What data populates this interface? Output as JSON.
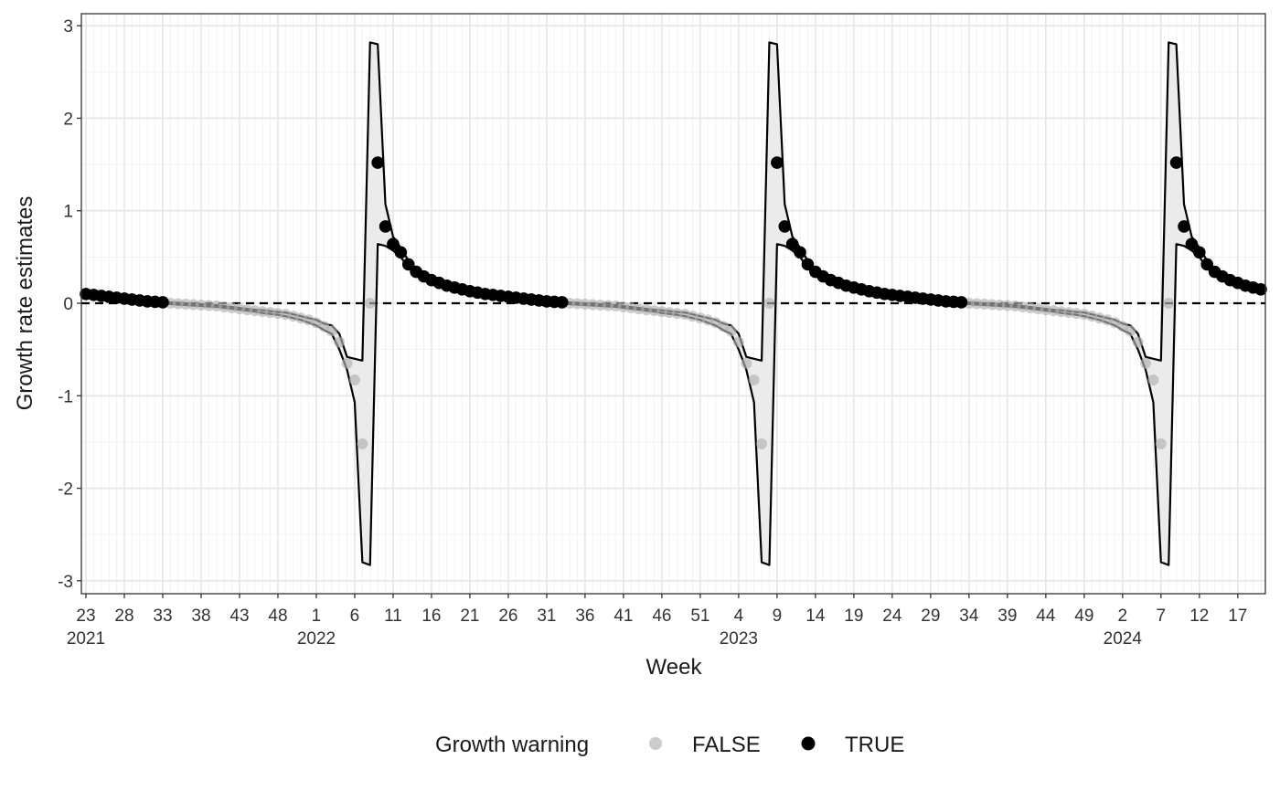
{
  "chart_data": {
    "type": "ribbon-points",
    "ylabel": "Growth rate estimates",
    "xlabel": "Week",
    "ylim": [
      -3.14,
      3.13
    ],
    "yticks": [
      -3,
      -2,
      -1,
      0,
      1,
      2,
      3
    ],
    "y_minor_grid": [
      -2.5,
      -1.5,
      -0.5,
      0.5,
      1.5,
      2.5
    ],
    "grid": true,
    "reference_line": 0,
    "legend": {
      "title": "Growth warning",
      "position": "bottom"
    },
    "categories": [
      "23\n2021",
      null,
      null,
      null,
      null,
      "28",
      null,
      null,
      null,
      null,
      "33",
      null,
      null,
      null,
      null,
      "38",
      null,
      null,
      null,
      null,
      "43",
      null,
      null,
      null,
      null,
      "48",
      null,
      null,
      null,
      null,
      "1\n2022",
      null,
      null,
      null,
      null,
      "6",
      null,
      null,
      null,
      null,
      "11",
      null,
      null,
      null,
      null,
      "16",
      null,
      null,
      null,
      null,
      "21",
      null,
      null,
      null,
      null,
      "26",
      null,
      null,
      null,
      null,
      "31",
      null,
      null,
      null,
      null,
      "36",
      null,
      null,
      null,
      null,
      "41",
      null,
      null,
      null,
      null,
      "46",
      null,
      null,
      null,
      null,
      "51",
      null,
      null,
      null,
      null,
      "4\n2023",
      null,
      null,
      null,
      null,
      "9",
      null,
      null,
      null,
      null,
      "14",
      null,
      null,
      null,
      null,
      "19",
      null,
      null,
      null,
      null,
      "24",
      null,
      null,
      null,
      null,
      "29",
      null,
      null,
      null,
      null,
      "34",
      null,
      null,
      null,
      null,
      "39",
      null,
      null,
      null,
      null,
      "44",
      null,
      null,
      null,
      null,
      "49",
      null,
      null,
      null,
      null,
      "2\n2024",
      null,
      null,
      null,
      null,
      "7",
      null,
      null,
      null,
      null,
      "12",
      null,
      null,
      null,
      null,
      "17",
      null,
      null,
      null
    ],
    "series": [
      {
        "name": "FALSE",
        "color": "#b0b0b0",
        "values": [
          null,
          null,
          null,
          null,
          null,
          null,
          null,
          null,
          null,
          null,
          null,
          0,
          -0.005,
          -0.01,
          -0.015,
          -0.02,
          -0.025,
          -0.03,
          -0.04,
          -0.05,
          -0.06,
          -0.07,
          -0.08,
          -0.09,
          -0.1,
          -0.11,
          -0.12,
          -0.14,
          -0.16,
          -0.18,
          -0.21,
          -0.25,
          -0.3,
          -0.42,
          -0.65,
          -0.83,
          -1.52,
          0,
          null,
          null,
          null,
          null,
          null,
          null,
          null,
          null,
          null,
          null,
          null,
          null,
          null,
          null,
          null,
          null,
          null,
          null,
          null,
          null,
          null,
          null,
          null,
          null,
          null,
          0,
          -0.005,
          -0.01,
          -0.015,
          -0.02,
          -0.025,
          -0.03,
          -0.04,
          -0.05,
          -0.06,
          -0.07,
          -0.08,
          -0.09,
          -0.1,
          -0.11,
          -0.12,
          -0.14,
          -0.16,
          -0.18,
          -0.21,
          -0.25,
          -0.3,
          -0.42,
          -0.65,
          -0.83,
          -1.52,
          0,
          null,
          null,
          null,
          null,
          null,
          null,
          null,
          null,
          null,
          null,
          null,
          null,
          null,
          null,
          null,
          null,
          null,
          null,
          null,
          null,
          null,
          null,
          null,
          null,
          null,
          0,
          -0.005,
          -0.01,
          -0.015,
          -0.02,
          -0.025,
          -0.03,
          -0.04,
          -0.05,
          -0.06,
          -0.07,
          -0.08,
          -0.09,
          -0.1,
          -0.11,
          -0.12,
          -0.14,
          -0.16,
          -0.18,
          -0.21,
          -0.25,
          -0.3,
          -0.42,
          -0.65,
          -0.83,
          -1.52,
          0,
          null,
          null,
          null,
          null,
          null,
          null,
          null,
          null,
          null,
          null,
          null,
          null
        ]
      },
      {
        "name": "TRUE",
        "color": "#000000",
        "values": [
          0.1,
          0.09,
          0.08,
          0.07,
          0.06,
          0.05,
          0.04,
          0.03,
          0.02,
          0.015,
          0.01,
          null,
          null,
          null,
          null,
          null,
          null,
          null,
          null,
          null,
          null,
          null,
          null,
          null,
          null,
          null,
          null,
          null,
          null,
          null,
          null,
          null,
          null,
          null,
          null,
          null,
          null,
          null,
          1.52,
          0.83,
          0.64,
          0.55,
          0.42,
          0.34,
          0.29,
          0.25,
          0.22,
          0.19,
          0.17,
          0.15,
          0.13,
          0.115,
          0.1,
          0.09,
          0.08,
          0.07,
          0.06,
          0.05,
          0.04,
          0.03,
          0.02,
          0.015,
          0.01,
          null,
          null,
          null,
          null,
          null,
          null,
          null,
          null,
          null,
          null,
          null,
          null,
          null,
          null,
          null,
          null,
          null,
          null,
          null,
          null,
          null,
          null,
          null,
          null,
          null,
          null,
          null,
          1.52,
          0.83,
          0.64,
          0.55,
          0.42,
          0.34,
          0.29,
          0.25,
          0.22,
          0.19,
          0.17,
          0.15,
          0.13,
          0.115,
          0.1,
          0.09,
          0.08,
          0.07,
          0.06,
          0.05,
          0.04,
          0.03,
          0.02,
          0.015,
          0.01,
          null,
          null,
          null,
          null,
          null,
          null,
          null,
          null,
          null,
          null,
          null,
          null,
          null,
          null,
          null,
          null,
          null,
          null,
          null,
          null,
          null,
          null,
          null,
          null,
          null,
          null,
          null,
          1.52,
          0.83,
          0.64,
          0.55,
          0.42,
          0.34,
          0.29,
          0.25,
          0.22,
          0.19,
          0.17,
          0.15
        ]
      }
    ],
    "ribbon": {
      "fill": "#ebebeb",
      "line_color": "#000000",
      "lower": [
        0.09,
        0.08,
        0.07,
        0.06,
        0.05,
        0.04,
        0.03,
        0.02,
        0.01,
        0.005,
        0,
        -0.01,
        -0.015,
        -0.02,
        -0.025,
        -0.03,
        -0.035,
        -0.04,
        -0.05,
        -0.06,
        -0.07,
        -0.08,
        -0.09,
        -0.105,
        -0.115,
        -0.125,
        -0.14,
        -0.16,
        -0.18,
        -0.21,
        -0.24,
        -0.29,
        -0.33,
        -0.5,
        -0.72,
        -1.07,
        -2.8,
        -2.83,
        0.64,
        0.62,
        0.57,
        0.5,
        0.38,
        0.31,
        0.27,
        0.23,
        0.205,
        0.175,
        0.155,
        0.135,
        0.12,
        0.105,
        0.09,
        0.08,
        0.07,
        0.06,
        0.05,
        0.04,
        0.03,
        0.02,
        0.01,
        0.005,
        0,
        -0.01,
        -0.015,
        -0.02,
        -0.025,
        -0.03,
        -0.035,
        -0.04,
        -0.05,
        -0.06,
        -0.07,
        -0.08,
        -0.09,
        -0.105,
        -0.115,
        -0.125,
        -0.14,
        -0.16,
        -0.18,
        -0.21,
        -0.24,
        -0.29,
        -0.33,
        -0.5,
        -0.72,
        -1.07,
        -2.8,
        -2.83,
        0.64,
        0.62,
        0.57,
        0.5,
        0.38,
        0.31,
        0.27,
        0.23,
        0.205,
        0.175,
        0.155,
        0.135,
        0.12,
        0.105,
        0.09,
        0.08,
        0.07,
        0.06,
        0.05,
        0.04,
        0.03,
        0.02,
        0.01,
        0.005,
        0,
        -0.01,
        -0.015,
        -0.02,
        -0.025,
        -0.03,
        -0.035,
        -0.04,
        -0.05,
        -0.06,
        -0.07,
        -0.08,
        -0.09,
        -0.105,
        -0.115,
        -0.125,
        -0.14,
        -0.16,
        -0.18,
        -0.21,
        -0.24,
        -0.29,
        -0.33,
        -0.5,
        -0.72,
        -1.07,
        -2.8,
        -2.83,
        0.64,
        0.62,
        0.57,
        0.5,
        0.38,
        0.31,
        0.27,
        0.23,
        0.205,
        0.175,
        0.155,
        0.135
      ],
      "upper": [
        0.11,
        0.1,
        0.09,
        0.08,
        0.07,
        0.06,
        0.05,
        0.04,
        0.03,
        0.025,
        0.02,
        0.01,
        0.005,
        0,
        -0.005,
        -0.01,
        -0.015,
        -0.02,
        -0.03,
        -0.04,
        -0.05,
        -0.06,
        -0.07,
        -0.075,
        -0.085,
        -0.095,
        -0.1,
        -0.12,
        -0.14,
        -0.16,
        -0.18,
        -0.22,
        -0.24,
        -0.33,
        -0.58,
        -0.6,
        -0.62,
        2.82,
        2.8,
        1.07,
        0.72,
        0.6,
        0.46,
        0.37,
        0.31,
        0.27,
        0.235,
        0.205,
        0.185,
        0.165,
        0.14,
        0.125,
        0.11,
        0.1,
        0.09,
        0.08,
        0.07,
        0.06,
        0.05,
        0.04,
        0.03,
        0.025,
        0.02,
        0.01,
        0.005,
        0,
        -0.005,
        -0.01,
        -0.015,
        -0.02,
        -0.03,
        -0.04,
        -0.05,
        -0.06,
        -0.07,
        -0.075,
        -0.085,
        -0.095,
        -0.1,
        -0.12,
        -0.14,
        -0.16,
        -0.18,
        -0.22,
        -0.24,
        -0.33,
        -0.58,
        -0.6,
        -0.62,
        2.82,
        2.8,
        1.07,
        0.72,
        0.6,
        0.46,
        0.37,
        0.31,
        0.27,
        0.235,
        0.205,
        0.185,
        0.165,
        0.14,
        0.125,
        0.11,
        0.1,
        0.09,
        0.08,
        0.07,
        0.06,
        0.05,
        0.04,
        0.03,
        0.025,
        0.02,
        0.01,
        0.005,
        0,
        -0.005,
        -0.01,
        -0.015,
        -0.02,
        -0.03,
        -0.04,
        -0.05,
        -0.06,
        -0.07,
        -0.075,
        -0.085,
        -0.095,
        -0.1,
        -0.12,
        -0.14,
        -0.16,
        -0.18,
        -0.22,
        -0.24,
        -0.33,
        -0.58,
        -0.6,
        -0.62,
        2.82,
        2.8,
        1.07,
        0.72,
        0.6,
        0.46,
        0.37,
        0.31,
        0.27,
        0.235,
        0.205,
        0.185,
        0.165
      ]
    }
  }
}
